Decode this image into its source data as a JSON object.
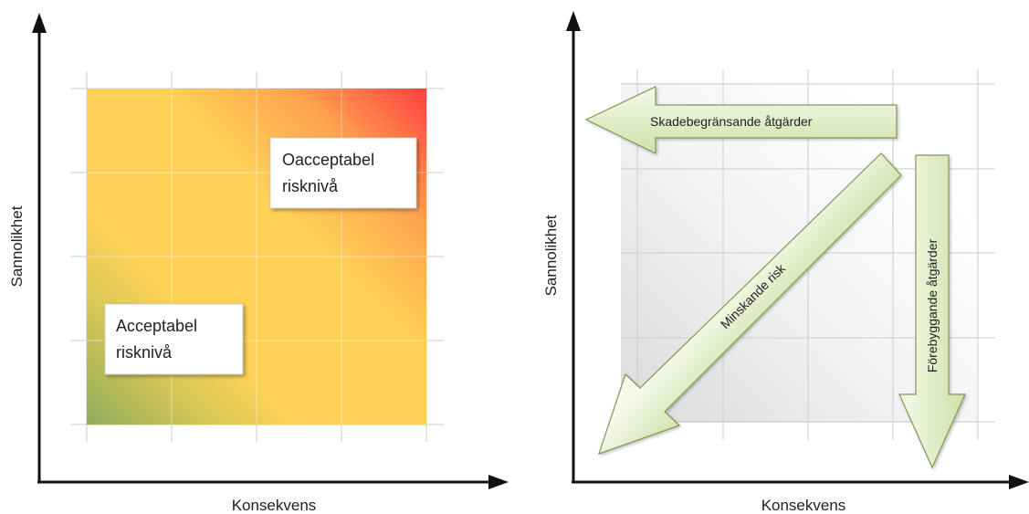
{
  "left_diagram": {
    "y_axis_label": "Sannolikhet",
    "x_axis_label": "Konsekvens",
    "unacceptable_box": {
      "line1": "Oacceptabel",
      "line2": "risknivå"
    },
    "acceptable_box": {
      "line1": "Acceptabel",
      "line2": "risknivå"
    }
  },
  "right_diagram": {
    "y_axis_label": "Sannolikhet",
    "x_axis_label": "Konsekvens",
    "damage_limiting_arrow_label": "Skadebegränsande åtgärder",
    "decreasing_risk_arrow_label": "Minskande risk",
    "preventive_arrow_label": "Förebyggande åtgärder"
  },
  "colors": {
    "low_risk": "#8fac5c",
    "medium_risk": "#ffd257",
    "high_risk": "#ff4040",
    "arrow_fill_light": "#f3f8e6",
    "arrow_fill_dark": "#cfe0a8",
    "arrow_stroke": "#7f9a57",
    "axis": "#111111",
    "grid": "#cccccc"
  }
}
